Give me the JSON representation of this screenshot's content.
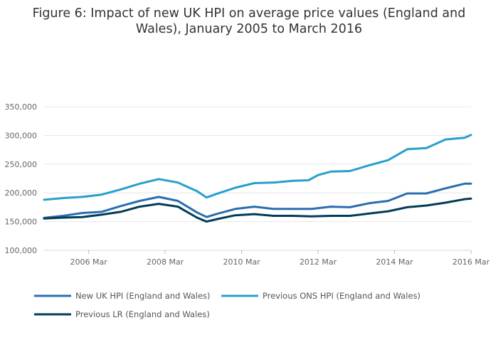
{
  "chart_data": {
    "type": "line",
    "title": "Figure 6: Impact of new UK HPI on average price values (England and Wales), January 2005 to March 2016",
    "title_lines": [
      "Figure 6: Impact of new UK HPI on average price values (England and",
      "Wales), January 2005 to March 2016"
    ],
    "xlabel": "",
    "ylabel": "",
    "x_ticks": [
      {
        "label": "2006 Mar",
        "value": "2006-03"
      },
      {
        "label": "2008 Mar",
        "value": "2008-03"
      },
      {
        "label": "2010 Mar",
        "value": "2010-03"
      },
      {
        "label": "2012 Mar",
        "value": "2012-03"
      },
      {
        "label": "2014 Mar",
        "value": "2014-03"
      },
      {
        "label": "2016 Mar",
        "value": "2016-03"
      }
    ],
    "y_ticks": [
      100000,
      150000,
      200000,
      250000,
      300000,
      350000
    ],
    "y_tick_labels": [
      "100,000",
      "150,000",
      "200,000",
      "250,000",
      "300,000",
      "350,000"
    ],
    "ylim": [
      100000,
      360000
    ],
    "xlim": [
      "2005-01",
      "2016-03"
    ],
    "grid": true,
    "legend_position": "bottom",
    "series": [
      {
        "name": "New UK HPI (England and Wales)",
        "color": "#2a6db0",
        "points": [
          [
            "2005-01",
            156500
          ],
          [
            "2005-07",
            160000
          ],
          [
            "2006-01",
            165000
          ],
          [
            "2006-07",
            167000
          ],
          [
            "2007-01",
            177000
          ],
          [
            "2007-07",
            186000
          ],
          [
            "2008-01",
            193000
          ],
          [
            "2008-07",
            186000
          ],
          [
            "2009-01",
            166000
          ],
          [
            "2009-04",
            158000
          ],
          [
            "2009-07",
            163000
          ],
          [
            "2010-01",
            172000
          ],
          [
            "2010-07",
            176000
          ],
          [
            "2011-01",
            172000
          ],
          [
            "2011-07",
            172000
          ],
          [
            "2012-01",
            172000
          ],
          [
            "2012-07",
            176000
          ],
          [
            "2013-01",
            175000
          ],
          [
            "2013-07",
            182000
          ],
          [
            "2014-01",
            186000
          ],
          [
            "2014-07",
            199000
          ],
          [
            "2015-01",
            199000
          ],
          [
            "2015-07",
            208000
          ],
          [
            "2016-01",
            216000
          ],
          [
            "2016-03",
            216000
          ]
        ]
      },
      {
        "name": "Previous ONS HPI (England and Wales)",
        "color": "#27a0cc",
        "points": [
          [
            "2005-01",
            188000
          ],
          [
            "2005-07",
            191000
          ],
          [
            "2006-01",
            193000
          ],
          [
            "2006-07",
            197000
          ],
          [
            "2007-01",
            206000
          ],
          [
            "2007-07",
            216000
          ],
          [
            "2008-01",
            224000
          ],
          [
            "2008-07",
            218000
          ],
          [
            "2009-01",
            203000
          ],
          [
            "2009-04",
            192000
          ],
          [
            "2009-07",
            198000
          ],
          [
            "2010-01",
            209000
          ],
          [
            "2010-07",
            217000
          ],
          [
            "2011-01",
            218000
          ],
          [
            "2011-07",
            221000
          ],
          [
            "2011-12",
            222000
          ],
          [
            "2012-03",
            231000
          ],
          [
            "2012-07",
            237000
          ],
          [
            "2013-01",
            238000
          ],
          [
            "2013-07",
            248000
          ],
          [
            "2014-01",
            257000
          ],
          [
            "2014-07",
            276000
          ],
          [
            "2015-01",
            278000
          ],
          [
            "2015-07",
            293000
          ],
          [
            "2016-01",
            296000
          ],
          [
            "2016-03",
            301000
          ]
        ]
      },
      {
        "name": "Previous LR (England and Wales)",
        "color": "#003c57",
        "points": [
          [
            "2005-01",
            155500
          ],
          [
            "2005-07",
            157000
          ],
          [
            "2006-01",
            158000
          ],
          [
            "2006-07",
            162000
          ],
          [
            "2007-01",
            167000
          ],
          [
            "2007-07",
            176000
          ],
          [
            "2008-01",
            181000
          ],
          [
            "2008-07",
            176000
          ],
          [
            "2009-01",
            157000
          ],
          [
            "2009-04",
            150000
          ],
          [
            "2009-07",
            154000
          ],
          [
            "2010-01",
            161000
          ],
          [
            "2010-07",
            163000
          ],
          [
            "2011-01",
            160000
          ],
          [
            "2011-07",
            160000
          ],
          [
            "2012-01",
            159000
          ],
          [
            "2012-07",
            160000
          ],
          [
            "2013-01",
            160000
          ],
          [
            "2013-07",
            164000
          ],
          [
            "2014-01",
            168000
          ],
          [
            "2014-07",
            175000
          ],
          [
            "2015-01",
            178000
          ],
          [
            "2015-07",
            183000
          ],
          [
            "2016-01",
            189000
          ],
          [
            "2016-03",
            190000
          ]
        ]
      }
    ]
  },
  "legend": [
    {
      "label": "New UK HPI (England and Wales)",
      "color": "#2a6db0"
    },
    {
      "label": "Previous ONS HPI (England and Wales)",
      "color": "#27a0cc"
    },
    {
      "label": "Previous LR (England and Wales)",
      "color": "#003c57"
    }
  ]
}
